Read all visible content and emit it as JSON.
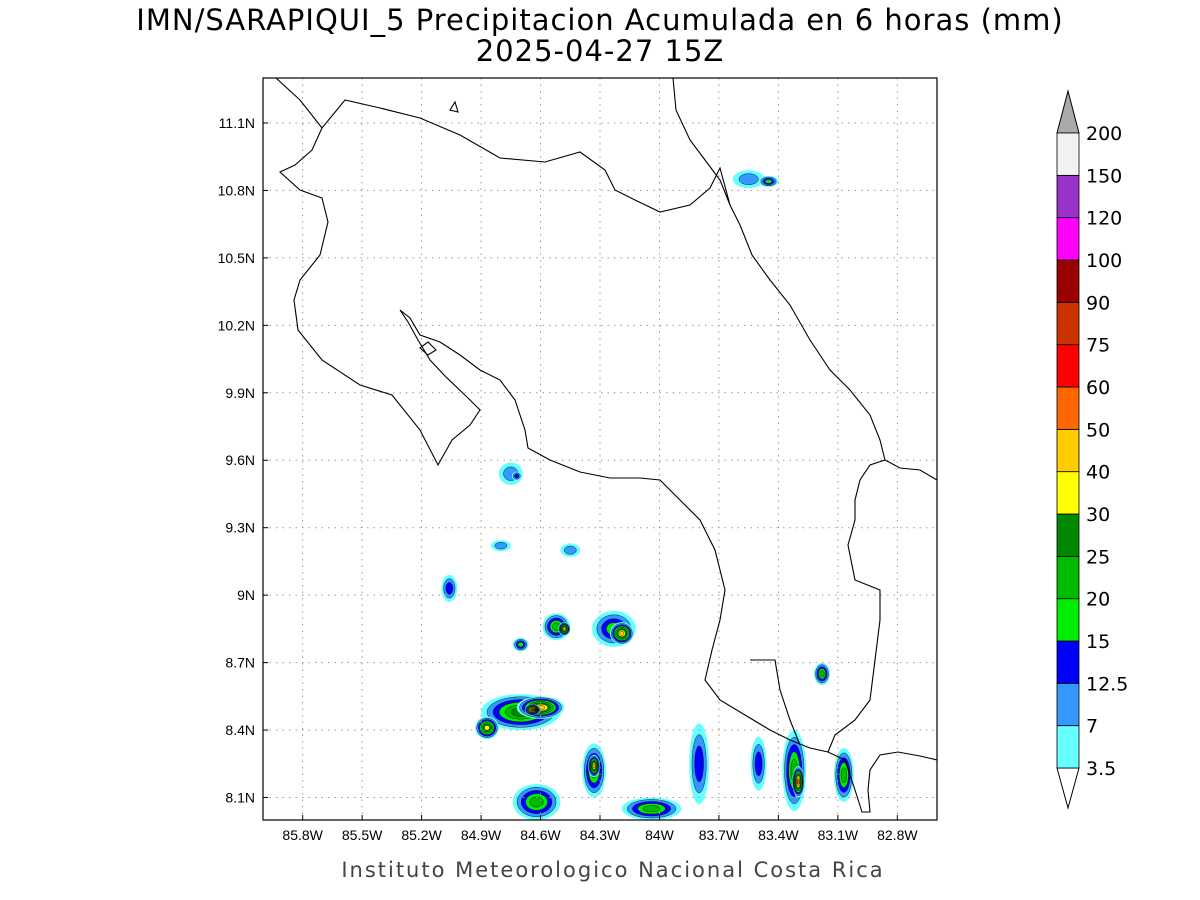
{
  "title": {
    "line1": "IMN/SARAPIQUI_5 Precipitacion Acumulada en 6 horas (mm)",
    "line2": "2025-04-27 15Z"
  },
  "footer": "Instituto Meteorologico Nacional Costa Rica",
  "map": {
    "lon_range": [
      -86.0,
      -82.6
    ],
    "lat_range": [
      8.0,
      11.3
    ],
    "lon_ticks": [
      {
        "value": -85.8,
        "label": "85.8W"
      },
      {
        "value": -85.5,
        "label": "85.5W"
      },
      {
        "value": -85.2,
        "label": "85.2W"
      },
      {
        "value": -84.9,
        "label": "84.9W"
      },
      {
        "value": -84.6,
        "label": "84.6W"
      },
      {
        "value": -84.3,
        "label": "84.3W"
      },
      {
        "value": -84.0,
        "label": "84W"
      },
      {
        "value": -83.7,
        "label": "83.7W"
      },
      {
        "value": -83.4,
        "label": "83.4W"
      },
      {
        "value": -83.1,
        "label": "83.1W"
      },
      {
        "value": -82.8,
        "label": "82.8W"
      }
    ],
    "lat_ticks": [
      {
        "value": 8.1,
        "label": "8.1N"
      },
      {
        "value": 8.4,
        "label": "8.4N"
      },
      {
        "value": 8.7,
        "label": "8.7N"
      },
      {
        "value": 9.0,
        "label": "9N"
      },
      {
        "value": 9.3,
        "label": "9.3N"
      },
      {
        "value": 9.6,
        "label": "9.6N"
      },
      {
        "value": 9.9,
        "label": "9.9N"
      },
      {
        "value": 10.2,
        "label": "10.2N"
      },
      {
        "value": 10.5,
        "label": "10.5N"
      },
      {
        "value": 10.8,
        "label": "10.8N"
      },
      {
        "value": 11.1,
        "label": "11.1N"
      }
    ],
    "grid": true
  },
  "colorbar": {
    "levels": [
      {
        "label": "3.5",
        "color": "#66ffff"
      },
      {
        "label": "7",
        "color": "#3399ff"
      },
      {
        "label": "12.5",
        "color": "#0000ff"
      },
      {
        "label": "15",
        "color": "#00ee00"
      },
      {
        "label": "20",
        "color": "#00bb00"
      },
      {
        "label": "25",
        "color": "#008800"
      },
      {
        "label": "30",
        "color": "#ffff00"
      },
      {
        "label": "40",
        "color": "#ffcc00"
      },
      {
        "label": "50",
        "color": "#ff6600"
      },
      {
        "label": "60",
        "color": "#ff0000"
      },
      {
        "label": "75",
        "color": "#cc3300"
      },
      {
        "label": "90",
        "color": "#990000"
      },
      {
        "label": "100",
        "color": "#ff00ff"
      },
      {
        "label": "120",
        "color": "#9933cc"
      },
      {
        "label": "150",
        "color": "#f2f2f2"
      },
      {
        "label": "200",
        "color": "#aaaaaa"
      }
    ]
  },
  "precip_cells": [
    {
      "lon": -83.55,
      "lat": 10.85,
      "rx": 0.08,
      "ry": 0.04,
      "mm": 7
    },
    {
      "lon": -83.45,
      "lat": 10.84,
      "rx": 0.05,
      "ry": 0.025,
      "mm": 15
    },
    {
      "lon": -84.75,
      "lat": 9.54,
      "rx": 0.06,
      "ry": 0.05,
      "mm": 7
    },
    {
      "lon": -84.72,
      "lat": 9.53,
      "rx": 0.025,
      "ry": 0.02,
      "mm": 12.5
    },
    {
      "lon": -84.8,
      "lat": 9.22,
      "rx": 0.05,
      "ry": 0.025,
      "mm": 7
    },
    {
      "lon": -84.45,
      "lat": 9.2,
      "rx": 0.05,
      "ry": 0.03,
      "mm": 7
    },
    {
      "lon": -85.06,
      "lat": 9.03,
      "rx": 0.04,
      "ry": 0.06,
      "mm": 12.5
    },
    {
      "lon": -84.23,
      "lat": 8.85,
      "rx": 0.11,
      "ry": 0.08,
      "mm": 15
    },
    {
      "lon": -84.19,
      "lat": 8.83,
      "rx": 0.06,
      "ry": 0.05,
      "mm": 40
    },
    {
      "lon": -84.52,
      "lat": 8.86,
      "rx": 0.07,
      "ry": 0.06,
      "mm": 20
    },
    {
      "lon": -84.48,
      "lat": 8.85,
      "rx": 0.03,
      "ry": 0.03,
      "mm": 40
    },
    {
      "lon": -84.7,
      "lat": 8.78,
      "rx": 0.04,
      "ry": 0.03,
      "mm": 15
    },
    {
      "lon": -84.7,
      "lat": 8.48,
      "rx": 0.2,
      "ry": 0.08,
      "mm": 25
    },
    {
      "lon": -84.6,
      "lat": 8.5,
      "rx": 0.12,
      "ry": 0.05,
      "mm": 40
    },
    {
      "lon": -84.64,
      "lat": 8.49,
      "rx": 0.04,
      "ry": 0.025,
      "mm": 60
    },
    {
      "lon": -84.62,
      "lat": 8.49,
      "rx": 0.012,
      "ry": 0.012,
      "mm": 120
    },
    {
      "lon": -84.87,
      "lat": 8.41,
      "rx": 0.06,
      "ry": 0.05,
      "mm": 30
    },
    {
      "lon": -84.33,
      "lat": 8.22,
      "rx": 0.06,
      "ry": 0.12,
      "mm": 20
    },
    {
      "lon": -84.33,
      "lat": 8.24,
      "rx": 0.03,
      "ry": 0.05,
      "mm": 40
    },
    {
      "lon": -84.62,
      "lat": 8.08,
      "rx": 0.12,
      "ry": 0.08,
      "mm": 20
    },
    {
      "lon": -84.04,
      "lat": 8.05,
      "rx": 0.15,
      "ry": 0.05,
      "mm": 20
    },
    {
      "lon": -83.8,
      "lat": 8.25,
      "rx": 0.05,
      "ry": 0.18,
      "mm": 12.5
    },
    {
      "lon": -83.32,
      "lat": 8.22,
      "rx": 0.06,
      "ry": 0.18,
      "mm": 20
    },
    {
      "lon": -83.3,
      "lat": 8.17,
      "rx": 0.03,
      "ry": 0.07,
      "mm": 50
    },
    {
      "lon": -83.07,
      "lat": 8.2,
      "rx": 0.05,
      "ry": 0.12,
      "mm": 20
    },
    {
      "lon": -83.18,
      "lat": 8.65,
      "rx": 0.04,
      "ry": 0.05,
      "mm": 20
    },
    {
      "lon": -83.5,
      "lat": 8.25,
      "rx": 0.04,
      "ry": 0.12,
      "mm": 12.5
    }
  ]
}
